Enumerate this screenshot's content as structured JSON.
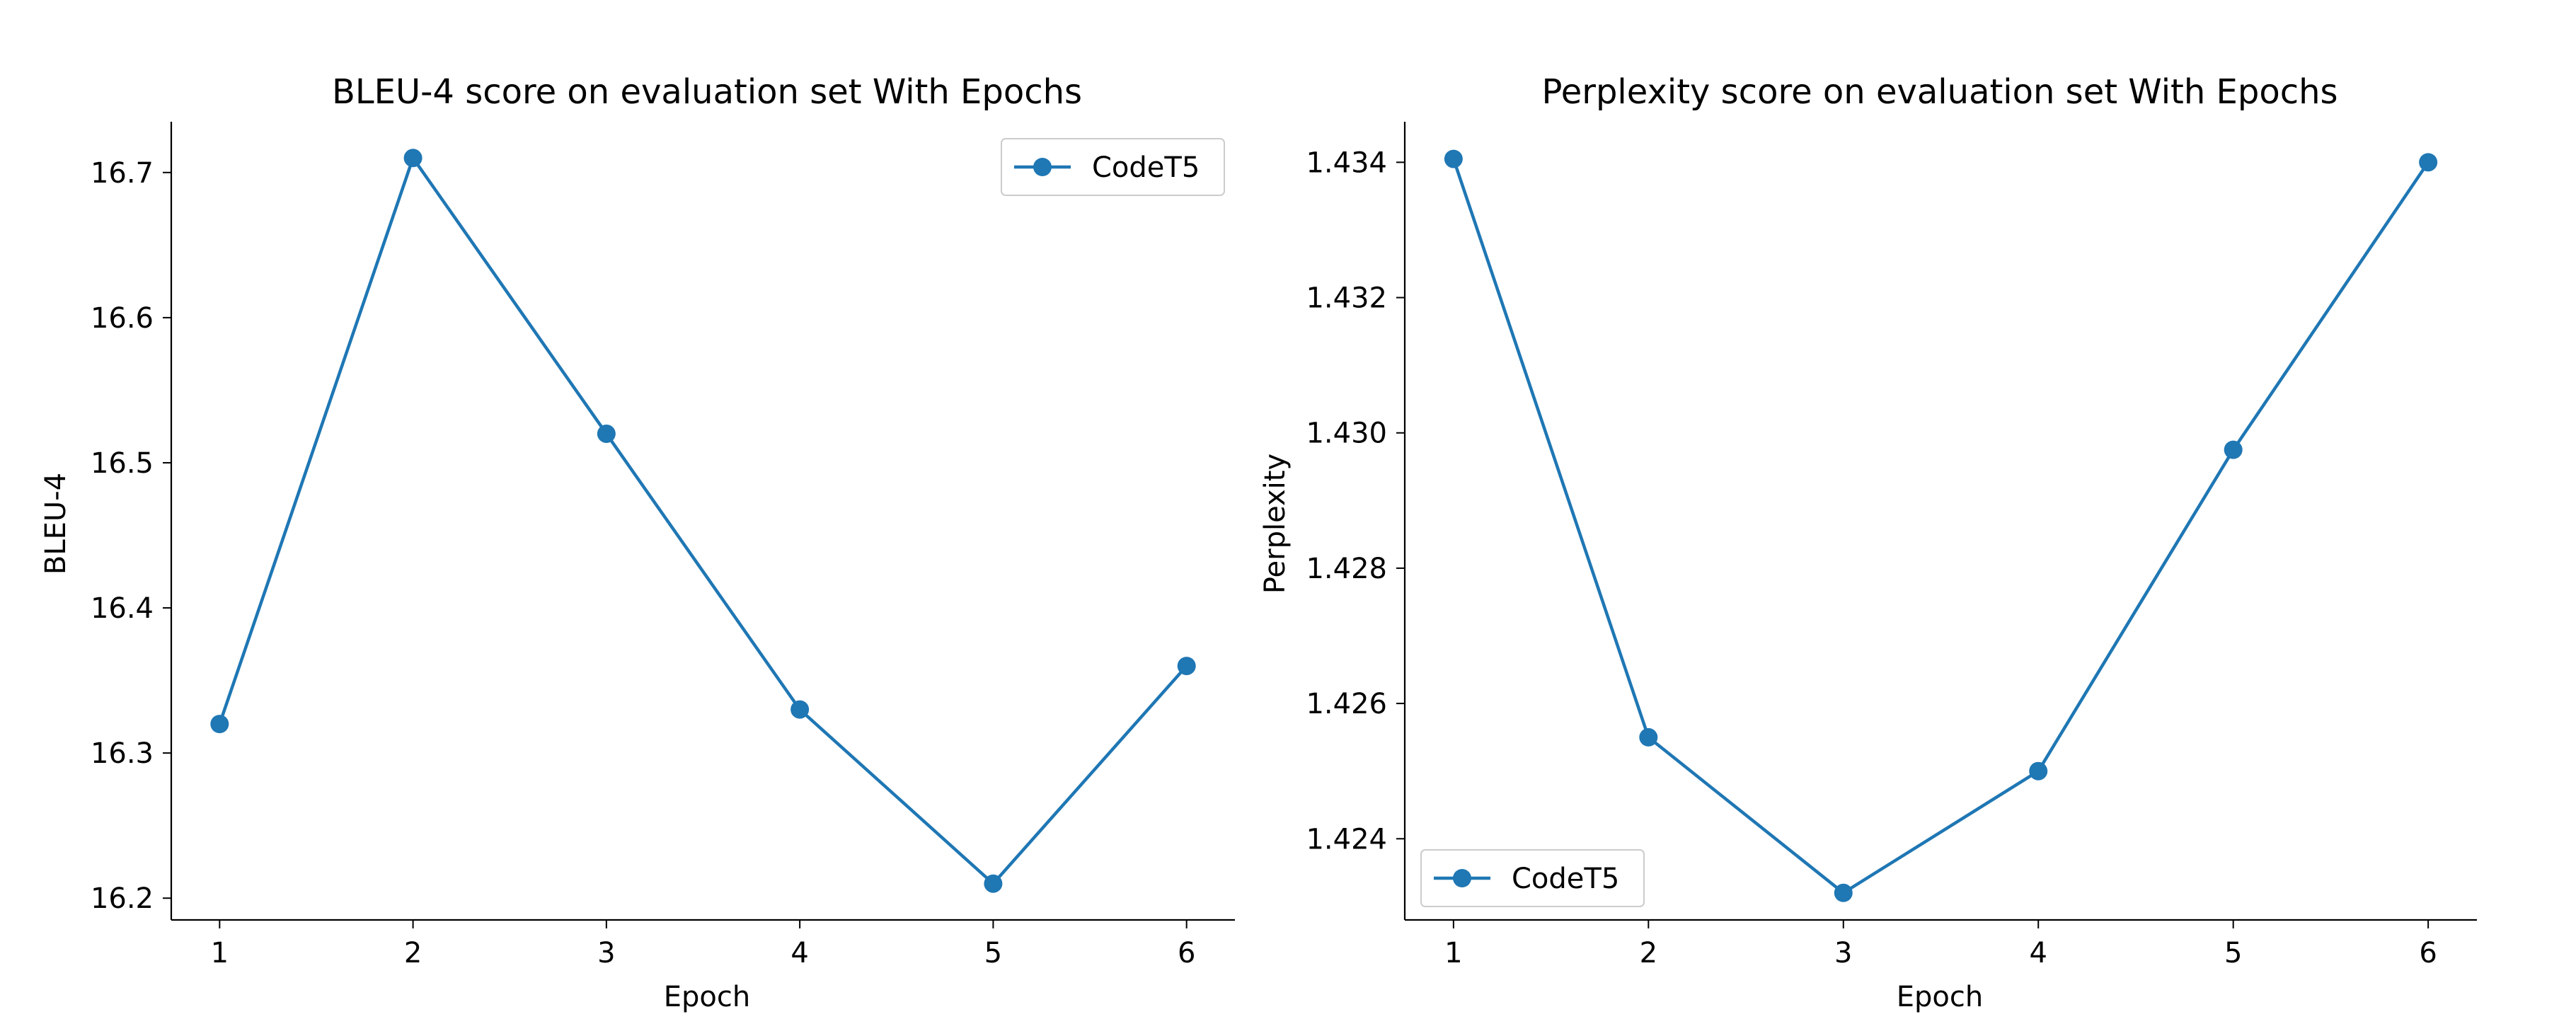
{
  "chart_data": [
    {
      "type": "line",
      "title": "BLEU-4 score on evaluation set With Epochs",
      "xlabel": "Epoch",
      "ylabel": "BLEU-4",
      "x": [
        1,
        2,
        3,
        4,
        5,
        6
      ],
      "xticks": [
        "1",
        "2",
        "3",
        "4",
        "5",
        "6"
      ],
      "yticks": [
        "16.2",
        "16.3",
        "16.4",
        "16.5",
        "16.6",
        "16.7"
      ],
      "ylim": [
        16.185,
        16.735
      ],
      "xlim": [
        0.75,
        6.25
      ],
      "grid": false,
      "legend_position": "upper right",
      "series": [
        {
          "name": "CodeT5",
          "color": "#1f77b4",
          "marker": "circle",
          "values": [
            16.32,
            16.71,
            16.52,
            16.33,
            16.21,
            16.36
          ]
        }
      ]
    },
    {
      "type": "line",
      "title": "Perplexity score on evaluation set With Epochs",
      "xlabel": "Epoch",
      "ylabel": "Perplexity",
      "x": [
        1,
        2,
        3,
        4,
        5,
        6
      ],
      "xticks": [
        "1",
        "2",
        "3",
        "4",
        "5",
        "6"
      ],
      "yticks": [
        "1.424",
        "1.426",
        "1.428",
        "1.430",
        "1.432",
        "1.434"
      ],
      "ylim": [
        1.4228,
        1.4346
      ],
      "xlim": [
        0.75,
        6.25
      ],
      "grid": false,
      "legend_position": "lower left",
      "series": [
        {
          "name": "CodeT5",
          "color": "#1f77b4",
          "marker": "circle",
          "values": [
            1.43405,
            1.4255,
            1.4232,
            1.425,
            1.42975,
            1.434
          ]
        }
      ]
    }
  ]
}
